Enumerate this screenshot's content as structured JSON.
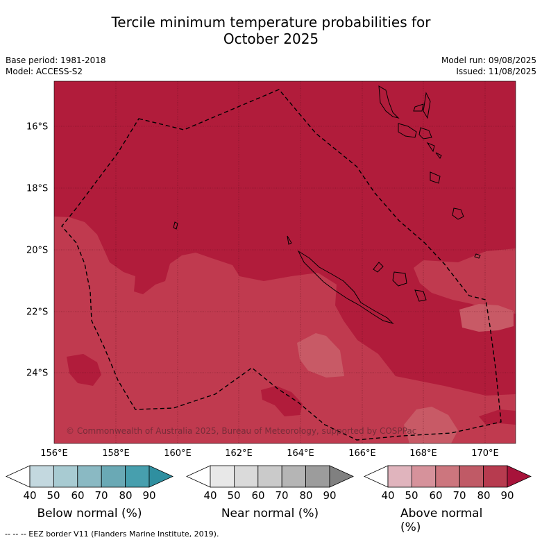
{
  "title_line1": "Tercile minimum temperature probabilities for",
  "title_line2": "October 2025",
  "base_period": "Base period: 1981-2018",
  "model": "Model: ACCESS-S2",
  "model_run": "Model run: 09/08/2025",
  "issued": "Issued: 11/08/2025",
  "copyright": "© Commonwealth of Australia 2025, Bureau of Meteorology, supported by COSPPac",
  "lon_labels": [
    "156°E",
    "158°E",
    "160°E",
    "162°E",
    "164°E",
    "166°E",
    "168°E",
    "170°E"
  ],
  "lat_labels": [
    "16°S",
    "18°S",
    "20°S",
    "22°S",
    "24°S"
  ],
  "colorbars": [
    {
      "title": "Below normal (%)",
      "ticks": [
        "40",
        "50",
        "60",
        "70",
        "80",
        "90"
      ],
      "colors": [
        "#ffffff",
        "#c3d8df",
        "#a8cbd2",
        "#8ab9c3",
        "#6aa9b5",
        "#479fae",
        "#2f8fa0"
      ]
    },
    {
      "title": "Near normal (%)",
      "ticks": [
        "40",
        "50",
        "60",
        "70",
        "80",
        "90"
      ],
      "colors": [
        "#ffffff",
        "#e8e8e8",
        "#dadada",
        "#cacaca",
        "#b5b5b5",
        "#9c9c9c",
        "#808080"
      ]
    },
    {
      "title": "Above normal (%)",
      "ticks": [
        "40",
        "50",
        "60",
        "70",
        "80",
        "90"
      ],
      "colors": [
        "#ffffff",
        "#e0b4bd",
        "#d6929b",
        "#cc767e",
        "#c05a66",
        "#b73b4f",
        "#a7133a"
      ]
    }
  ],
  "colors": {
    "above_80_90": "#b11c3b",
    "above_70_80": "#c03a4f",
    "above_60_70": "#c85a66",
    "coastline": "#000000",
    "eez_border": "#000000"
  },
  "footer": "--  --  -- EEZ border V11 (Flanders Marine Institute, 2019)."
}
